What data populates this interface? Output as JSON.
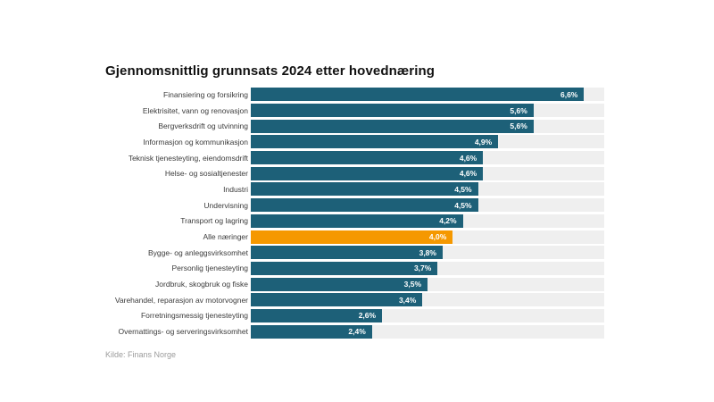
{
  "header": {
    "title": "Gjennomsnittlig grunnsats 2024 etter hovednæring"
  },
  "footer": {
    "source": "Kilde: Finans Norge"
  },
  "chart_data": {
    "type": "bar",
    "orientation": "horizontal",
    "title": "Gjennomsnittlig grunnsats 2024 etter hovednæring",
    "xlabel": "",
    "ylabel": "",
    "xlim": [
      0,
      7
    ],
    "grid": false,
    "legend": false,
    "value_suffix": "%",
    "decimal_separator": ",",
    "categories": [
      "Finansiering og forsikring",
      "Elektrisitet, vann og renovasjon",
      "Bergverksdrift og utvinning",
      "Informasjon og kommunikasjon",
      "Teknisk tjenesteyting, eiendomsdrift",
      "Helse- og sosialtjenester",
      "Industri",
      "Undervisning",
      "Transport og lagring",
      "Alle næringer",
      "Bygge- og anleggsvirksomhet",
      "Personlig tjenesteyting",
      "Jordbruk, skogbruk og fiske",
      "Varehandel, reparasjon av motorvogner",
      "Forretningsmessig tjenesteyting",
      "Overnattings- og serveringsvirksomhet"
    ],
    "values": [
      6.6,
      5.6,
      5.6,
      4.9,
      4.6,
      4.6,
      4.5,
      4.5,
      4.2,
      4.0,
      3.8,
      3.7,
      3.5,
      3.4,
      2.6,
      2.4
    ],
    "value_labels": [
      "6,6%",
      "5,6%",
      "5,6%",
      "4,9%",
      "4,6%",
      "4,6%",
      "4,5%",
      "4,5%",
      "4,2%",
      "4,0%",
      "3,8%",
      "3,7%",
      "3,5%",
      "3,4%",
      "2,6%",
      "2,4%"
    ],
    "highlight_index": 9,
    "colors": {
      "bar": "#1d6078",
      "highlight": "#f59800",
      "track": "#efefef",
      "value_text": "#ffffff",
      "label_text": "#3b3b3b",
      "title_text": "#111111",
      "source_text": "#9b9b9b"
    }
  }
}
